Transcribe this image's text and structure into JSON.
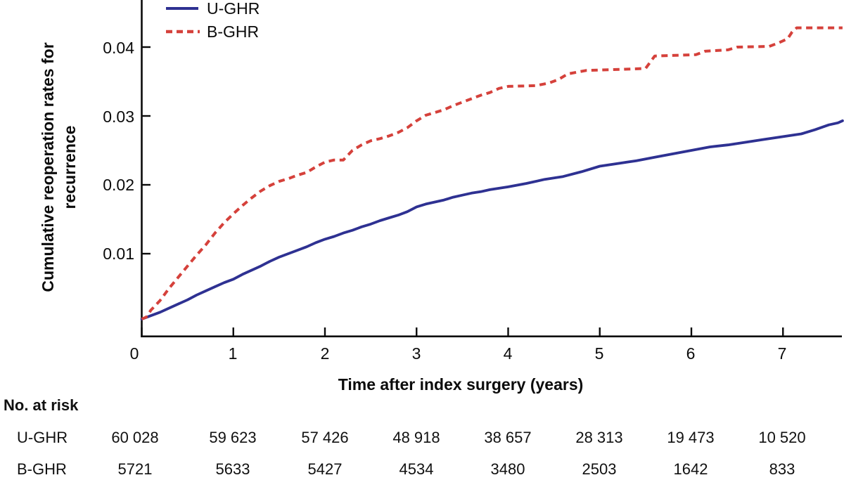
{
  "colors": {
    "ughr_line": "#2e3192",
    "bghr_line": "#d5413b",
    "axis": "#0b0b0b"
  },
  "chart_data": {
    "type": "line",
    "title": "",
    "xlabel": "Time after index surgery (years)",
    "ylabel_line1": "Cumulative reoperation rates for",
    "ylabel_line2": "recurrence",
    "x_ticks": [
      "0",
      "1",
      "2",
      "3",
      "4",
      "5",
      "6",
      "7"
    ],
    "y_ticks": [
      "0.01",
      "0.02",
      "0.03",
      "0.04"
    ],
    "xlim": [
      0,
      7.65
    ],
    "ylim": [
      -0.002,
      0.047
    ],
    "grid": false,
    "legend_position": "top-left",
    "series": [
      {
        "name": "U-GHR",
        "line_style": "solid",
        "color": "#2e3192",
        "points": [
          [
            0,
            0.0005
          ],
          [
            0.1,
            0.001
          ],
          [
            0.2,
            0.0015
          ],
          [
            0.3,
            0.0021
          ],
          [
            0.4,
            0.0027
          ],
          [
            0.5,
            0.0033
          ],
          [
            0.6,
            0.004
          ],
          [
            0.7,
            0.0046
          ],
          [
            0.8,
            0.0052
          ],
          [
            0.9,
            0.0058
          ],
          [
            1,
            0.0063
          ],
          [
            1.1,
            0.007
          ],
          [
            1.2,
            0.0076
          ],
          [
            1.3,
            0.0082
          ],
          [
            1.4,
            0.0089
          ],
          [
            1.5,
            0.0095
          ],
          [
            1.6,
            0.01
          ],
          [
            1.7,
            0.0105
          ],
          [
            1.8,
            0.011
          ],
          [
            1.9,
            0.0116
          ],
          [
            2,
            0.0121
          ],
          [
            2.1,
            0.0125
          ],
          [
            2.2,
            0.013
          ],
          [
            2.3,
            0.0134
          ],
          [
            2.4,
            0.0139
          ],
          [
            2.5,
            0.0143
          ],
          [
            2.6,
            0.0148
          ],
          [
            2.7,
            0.0152
          ],
          [
            2.8,
            0.0156
          ],
          [
            2.9,
            0.0161
          ],
          [
            3,
            0.0168
          ],
          [
            3.1,
            0.0172
          ],
          [
            3.2,
            0.0175
          ],
          [
            3.3,
            0.0178
          ],
          [
            3.4,
            0.0182
          ],
          [
            3.5,
            0.0185
          ],
          [
            3.6,
            0.0188
          ],
          [
            3.7,
            0.019
          ],
          [
            3.8,
            0.0193
          ],
          [
            3.9,
            0.0195
          ],
          [
            4,
            0.0197
          ],
          [
            4.2,
            0.0202
          ],
          [
            4.4,
            0.0208
          ],
          [
            4.6,
            0.0212
          ],
          [
            4.8,
            0.0219
          ],
          [
            5,
            0.0227
          ],
          [
            5.2,
            0.0231
          ],
          [
            5.4,
            0.0235
          ],
          [
            5.6,
            0.024
          ],
          [
            5.8,
            0.0245
          ],
          [
            6,
            0.025
          ],
          [
            6.2,
            0.0255
          ],
          [
            6.4,
            0.0258
          ],
          [
            6.6,
            0.0262
          ],
          [
            6.8,
            0.0266
          ],
          [
            7,
            0.027
          ],
          [
            7.2,
            0.0274
          ],
          [
            7.35,
            0.028
          ],
          [
            7.5,
            0.0287
          ],
          [
            7.6,
            0.029
          ],
          [
            7.65,
            0.0293
          ]
        ]
      },
      {
        "name": "B-GHR",
        "line_style": "dashed",
        "color": "#d5413b",
        "points": [
          [
            0,
            0.0005
          ],
          [
            0.05,
            0.0008
          ],
          [
            0.1,
            0.0018
          ],
          [
            0.2,
            0.0032
          ],
          [
            0.3,
            0.005
          ],
          [
            0.4,
            0.0066
          ],
          [
            0.5,
            0.0082
          ],
          [
            0.6,
            0.0098
          ],
          [
            0.7,
            0.0113
          ],
          [
            0.8,
            0.013
          ],
          [
            0.9,
            0.0145
          ],
          [
            1,
            0.0158
          ],
          [
            1.1,
            0.017
          ],
          [
            1.2,
            0.0181
          ],
          [
            1.3,
            0.0191
          ],
          [
            1.4,
            0.0199
          ],
          [
            1.5,
            0.0205
          ],
          [
            1.6,
            0.0209
          ],
          [
            1.7,
            0.0214
          ],
          [
            1.8,
            0.0218
          ],
          [
            1.9,
            0.0226
          ],
          [
            2,
            0.0233
          ],
          [
            2.1,
            0.0236
          ],
          [
            2.2,
            0.0236
          ],
          [
            2.3,
            0.025
          ],
          [
            2.4,
            0.0258
          ],
          [
            2.5,
            0.0264
          ],
          [
            2.6,
            0.0267
          ],
          [
            2.7,
            0.0271
          ],
          [
            2.8,
            0.0276
          ],
          [
            2.9,
            0.0283
          ],
          [
            3,
            0.0293
          ],
          [
            3.1,
            0.0301
          ],
          [
            3.2,
            0.0305
          ],
          [
            3.3,
            0.0309
          ],
          [
            3.4,
            0.0315
          ],
          [
            3.5,
            0.032
          ],
          [
            3.6,
            0.0325
          ],
          [
            3.7,
            0.033
          ],
          [
            3.8,
            0.0334
          ],
          [
            3.9,
            0.034
          ],
          [
            4,
            0.0343
          ],
          [
            4.3,
            0.0344
          ],
          [
            4.45,
            0.0348
          ],
          [
            4.55,
            0.0353
          ],
          [
            4.65,
            0.0361
          ],
          [
            4.85,
            0.0366
          ],
          [
            5.3,
            0.0368
          ],
          [
            5.5,
            0.0369
          ],
          [
            5.55,
            0.0378
          ],
          [
            5.6,
            0.0387
          ],
          [
            6.05,
            0.0389
          ],
          [
            6.15,
            0.0394
          ],
          [
            6.4,
            0.0396
          ],
          [
            6.5,
            0.04
          ],
          [
            6.85,
            0.0401
          ],
          [
            6.95,
            0.0406
          ],
          [
            7.05,
            0.0412
          ],
          [
            7.1,
            0.0422
          ],
          [
            7.15,
            0.0428
          ],
          [
            7.65,
            0.0428
          ]
        ]
      }
    ]
  },
  "risk_table": {
    "title": "No. at risk",
    "rows": [
      {
        "label": "U-GHR",
        "values": [
          "60 028",
          "59 623",
          "57 426",
          "48 918",
          "38 657",
          "28 313",
          "19 473",
          "10 520"
        ]
      },
      {
        "label": "B-GHR",
        "values": [
          "5721",
          "5633",
          "5427",
          "4534",
          "3480",
          "2503",
          "1642",
          "833"
        ]
      }
    ]
  }
}
